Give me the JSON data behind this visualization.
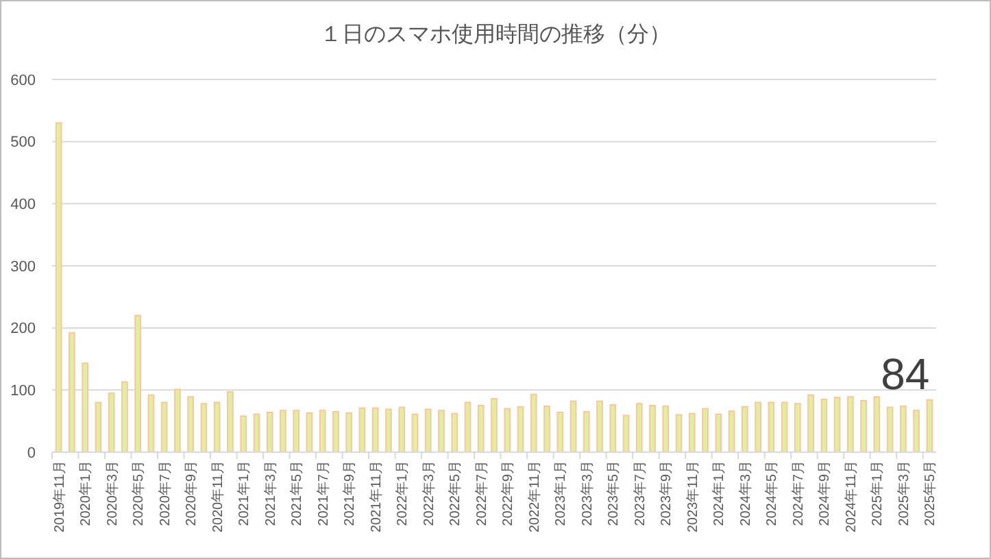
{
  "chart_data": {
    "type": "bar",
    "title": "１日のスマホ使用時間の推移（分）",
    "categories": [
      "2019年11月",
      null,
      "2020年1月",
      null,
      "2020年3月",
      null,
      "2020年5月",
      null,
      "2020年7月",
      null,
      "2020年9月",
      null,
      "2020年11月",
      null,
      "2021年1月",
      null,
      "2021年3月",
      null,
      "2021年5月",
      null,
      "2021年7月",
      null,
      "2021年9月",
      null,
      "2021年11月",
      null,
      "2022年1月",
      null,
      "2022年3月",
      null,
      "2022年5月",
      null,
      "2022年7月",
      null,
      "2022年9月",
      null,
      "2022年11月",
      null,
      "2023年1月",
      null,
      "2023年3月",
      null,
      "2023年5月",
      null,
      "2023年7月",
      null,
      "2023年9月",
      null,
      "2023年11月",
      null,
      "2024年1月",
      null,
      "2024年3月",
      null,
      "2024年5月",
      null,
      "2024年7月",
      null,
      "2024年9月",
      null,
      "2024年11月",
      null,
      "2025年1月",
      null,
      "2025年3月",
      null,
      "2025年5月"
    ],
    "values": [
      530,
      192,
      143,
      80,
      95,
      113,
      220,
      92,
      80,
      101,
      89,
      78,
      80,
      97,
      58,
      61,
      64,
      67,
      67,
      63,
      67,
      65,
      63,
      71,
      71,
      69,
      72,
      61,
      69,
      67,
      62,
      80,
      75,
      86,
      70,
      73,
      93,
      74,
      64,
      82,
      65,
      82,
      76,
      59,
      78,
      75,
      74,
      60,
      62,
      70,
      61,
      66,
      73,
      80,
      80,
      80,
      78,
      92,
      85,
      88,
      89,
      83,
      89,
      72,
      74,
      67,
      84
    ],
    "value_labels": [
      null,
      null,
      null,
      null,
      null,
      null,
      null,
      null,
      null,
      null,
      null,
      null,
      null,
      null,
      null,
      null,
      null,
      null,
      null,
      null,
      null,
      null,
      null,
      null,
      null,
      null,
      null,
      null,
      null,
      null,
      null,
      null,
      null,
      null,
      null,
      null,
      null,
      null,
      null,
      null,
      null,
      null,
      null,
      null,
      null,
      null,
      null,
      null,
      null,
      null,
      null,
      null,
      null,
      null,
      null,
      null,
      null,
      null,
      null,
      null,
      null,
      null,
      null,
      null,
      null,
      null,
      "84"
    ],
    "color": "#e3ee9c",
    "ylim": [
      0,
      600
    ],
    "yticks": [
      0,
      100,
      200,
      300,
      400,
      500,
      600
    ],
    "grid": "y"
  }
}
